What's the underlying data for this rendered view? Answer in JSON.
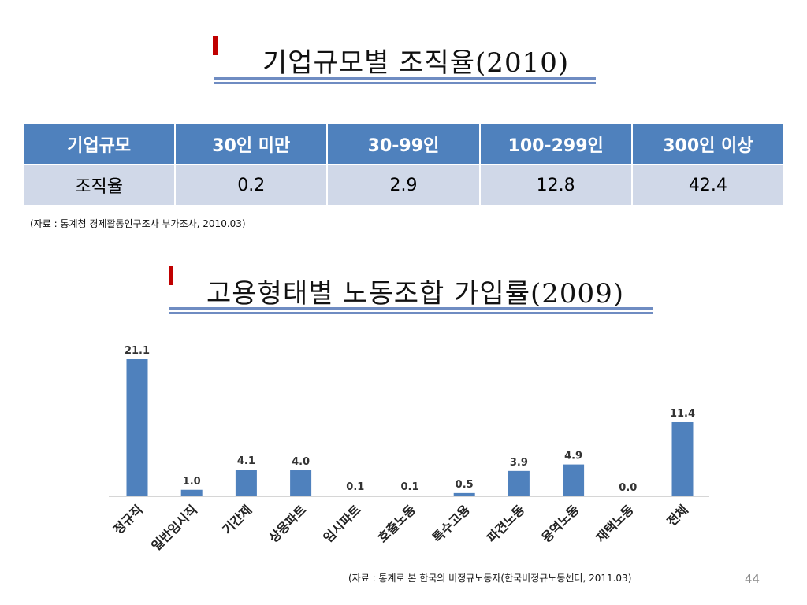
{
  "section1": {
    "title": "기업규모별 조직율(2010)",
    "table": {
      "headers": [
        "기업규모",
        "30인 미만",
        "30-99인",
        "100-299인",
        "300인 이상"
      ],
      "row": [
        "조직율",
        "0.2",
        "2.9",
        "12.8",
        "42.4"
      ]
    },
    "source": "(자료 : 통계청 경제활동인구조사 부가조사, 2010.03)"
  },
  "section2": {
    "title": "고용형태별 노동조합 가입률(2009)",
    "source": "(자료 : 통계로 본 한국의 비정규노동자(한국비정규노동센터, 2011.03)"
  },
  "chart_data": {
    "type": "bar",
    "categories": [
      "정규직",
      "일반임시직",
      "기간제",
      "상용파트",
      "임시파트",
      "호출노동",
      "특수고용",
      "파견노동",
      "용역노동",
      "재택노동",
      "전체"
    ],
    "values": [
      21.1,
      1.0,
      4.1,
      4.0,
      0.1,
      0.1,
      0.5,
      3.9,
      4.9,
      0.0,
      11.4
    ],
    "value_labels": [
      "21.1",
      "1.0",
      "4.1",
      "4.0",
      "0.1",
      "0.1",
      "0.5",
      "3.9",
      "4.9",
      "0.0",
      "11.4"
    ],
    "title": "",
    "xlabel": "",
    "ylabel": "",
    "ylim": [
      0,
      21.1
    ],
    "bar_color": "#4f81bd",
    "grid": false
  },
  "page_number": "44",
  "colors": {
    "accent_red": "#c00000",
    "header_blue": "#4f81bd",
    "cell_blue": "#d0d8e8",
    "rule_blue": "#6f8cc2"
  }
}
